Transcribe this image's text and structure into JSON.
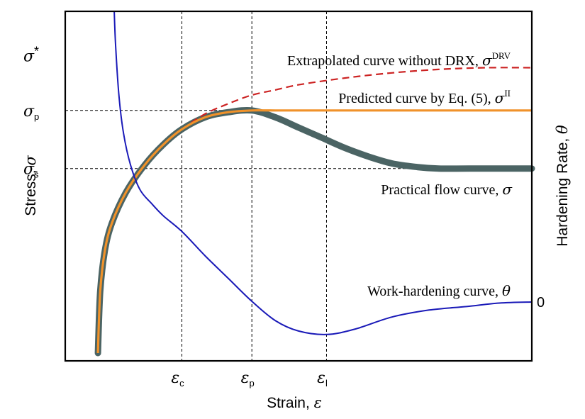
{
  "chart_data": {
    "type": "line",
    "title": "",
    "xlabel": "Strain, ε",
    "ylabel_left": "Stress, σ",
    "ylabel_right": "Hardening Rate, θ",
    "grid": false,
    "x_ticks": [
      {
        "id": "ec",
        "main": "ε",
        "sub": "c",
        "x": 0.25
      },
      {
        "id": "ep",
        "main": "ε",
        "sub": "p",
        "x": 0.4
      },
      {
        "id": "el",
        "main": "ε",
        "sub": "l",
        "x": 0.56
      }
    ],
    "y_ticks_left": [
      {
        "id": "sstar",
        "label": "σ*",
        "main": "σ",
        "sup": "*",
        "y": 0.87
      },
      {
        "id": "sp",
        "label": "σp",
        "main": "σ",
        "sub": "p",
        "y": 0.71
      },
      {
        "id": "ss",
        "label": "σs",
        "main": "σ",
        "sub": "s",
        "y": 0.54
      }
    ],
    "y_ticks_right": [
      {
        "id": "zero",
        "label": "0",
        "theta": 0
      }
    ],
    "reference_lines": [
      {
        "type": "horizontal",
        "at": "σp"
      },
      {
        "type": "horizontal",
        "at": "σs"
      },
      {
        "type": "vertical",
        "at": "εc"
      },
      {
        "type": "vertical",
        "at": "εp"
      },
      {
        "type": "vertical",
        "at": "εl"
      }
    ],
    "series": [
      {
        "id": "practical",
        "label_text": "Practical flow curve, ",
        "label_sym": "σ",
        "label_sup": "",
        "color": "#4b6464",
        "style": "thick",
        "points": [
          [
            0.07,
            0.0
          ],
          [
            0.075,
            0.18
          ],
          [
            0.085,
            0.3
          ],
          [
            0.1,
            0.38
          ],
          [
            0.13,
            0.47
          ],
          [
            0.17,
            0.55
          ],
          [
            0.21,
            0.61
          ],
          [
            0.25,
            0.655
          ],
          [
            0.3,
            0.69
          ],
          [
            0.35,
            0.705
          ],
          [
            0.4,
            0.71
          ],
          [
            0.45,
            0.69
          ],
          [
            0.5,
            0.66
          ],
          [
            0.55,
            0.63
          ],
          [
            0.6,
            0.6
          ],
          [
            0.65,
            0.575
          ],
          [
            0.7,
            0.555
          ],
          [
            0.75,
            0.545
          ],
          [
            0.8,
            0.54
          ],
          [
            0.9,
            0.54
          ],
          [
            1.0,
            0.54
          ]
        ]
      },
      {
        "id": "predicted",
        "label_text": "Predicted curve by Eq. (5), ",
        "label_sym": "σ",
        "label_sup": "II",
        "color": "#f0922a",
        "style": "solid",
        "points": [
          [
            0.07,
            0.0
          ],
          [
            0.075,
            0.18
          ],
          [
            0.085,
            0.3
          ],
          [
            0.1,
            0.38
          ],
          [
            0.13,
            0.47
          ],
          [
            0.17,
            0.55
          ],
          [
            0.21,
            0.61
          ],
          [
            0.25,
            0.655
          ],
          [
            0.3,
            0.69
          ],
          [
            0.35,
            0.705
          ],
          [
            0.4,
            0.71
          ],
          [
            0.45,
            0.71
          ],
          [
            0.6,
            0.71
          ],
          [
            0.8,
            0.71
          ],
          [
            1.0,
            0.71
          ]
        ]
      },
      {
        "id": "extrapolated",
        "label_text": "Extrapolated curve without DRX, ",
        "label_sym": "σ",
        "label_sup": "DRV",
        "color": "#cc2222",
        "style": "dashed",
        "points": [
          [
            0.25,
            0.655
          ],
          [
            0.3,
            0.7
          ],
          [
            0.35,
            0.73
          ],
          [
            0.4,
            0.755
          ],
          [
            0.45,
            0.77
          ],
          [
            0.5,
            0.785
          ],
          [
            0.6,
            0.805
          ],
          [
            0.7,
            0.82
          ],
          [
            0.8,
            0.83
          ],
          [
            0.9,
            0.835
          ],
          [
            1.0,
            0.835
          ]
        ]
      },
      {
        "id": "workhardening",
        "label_text": "Work-hardening curve, ",
        "label_sym": "θ",
        "label_sup": "",
        "color": "#1a1ab8",
        "style": "solid",
        "points": [
          [
            0.105,
            1.0
          ],
          [
            0.108,
            0.9
          ],
          [
            0.115,
            0.76
          ],
          [
            0.125,
            0.65
          ],
          [
            0.14,
            0.56
          ],
          [
            0.16,
            0.49
          ],
          [
            0.185,
            0.45
          ],
          [
            0.21,
            0.415
          ],
          [
            0.25,
            0.37
          ],
          [
            0.3,
            0.3
          ],
          [
            0.35,
            0.235
          ],
          [
            0.4,
            0.17
          ],
          [
            0.45,
            0.115
          ],
          [
            0.5,
            0.085
          ],
          [
            0.56,
            0.075
          ],
          [
            0.62,
            0.09
          ],
          [
            0.7,
            0.125
          ],
          [
            0.78,
            0.145
          ],
          [
            0.86,
            0.155
          ],
          [
            0.93,
            0.165
          ],
          [
            1.0,
            0.168
          ]
        ]
      }
    ]
  }
}
